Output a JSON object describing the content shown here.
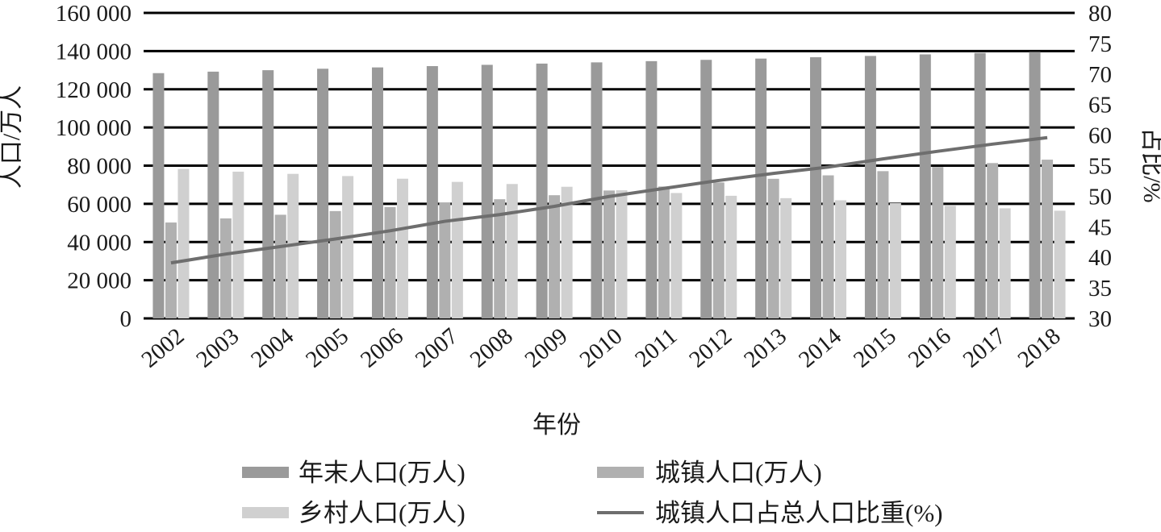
{
  "chart_data": {
    "type": "bar",
    "title": "",
    "xlabel": "年份",
    "ylabel": "人口/万人",
    "y2label": "占比/%",
    "ylim": [
      0,
      160000
    ],
    "y2lim": [
      30,
      80
    ],
    "y_ticks": [
      "0",
      "20 000",
      "40 000",
      "60 000",
      "80 000",
      "100 000",
      "120 000",
      "140 000",
      "160 000"
    ],
    "y2_ticks": [
      "30",
      "35",
      "40",
      "45",
      "50",
      "55",
      "60",
      "65",
      "70",
      "75",
      "80"
    ],
    "grid": "horizontal",
    "legend": "bottom",
    "categories": [
      "2002",
      "2003",
      "2004",
      "2005",
      "2006",
      "2007",
      "2008",
      "2009",
      "2010",
      "2011",
      "2012",
      "2013",
      "2014",
      "2015",
      "2016",
      "2017",
      "2018"
    ],
    "series": [
      {
        "name": "年末人口(万人)",
        "kind": "bar",
        "axis": "left",
        "color": "#9a9a9a",
        "values": [
          128453,
          129227,
          129988,
          130756,
          131448,
          132129,
          132802,
          133450,
          134091,
          134735,
          135404,
          136072,
          136782,
          137462,
          138271,
          139008,
          139538
        ]
      },
      {
        "name": "城镇人口(万人)",
        "kind": "bar",
        "axis": "left",
        "color": "#b0b0b0",
        "values": [
          50212,
          52376,
          54283,
          56212,
          58288,
          60633,
          62403,
          64512,
          66978,
          69079,
          71182,
          73111,
          74916,
          77116,
          79298,
          81347,
          83137
        ]
      },
      {
        "name": "乡村人口(万人)",
        "kind": "bar",
        "axis": "left",
        "color": "#d0d0d0",
        "values": [
          78241,
          76851,
          75705,
          74544,
          73160,
          71496,
          70399,
          68938,
          67113,
          65656,
          64222,
          62961,
          61866,
          60346,
          58973,
          57661,
          56401
        ]
      },
      {
        "name": "城镇人口占总人口比重(%)",
        "kind": "line",
        "axis": "right",
        "color": "#6e6e6e",
        "values": [
          39.09,
          40.53,
          41.76,
          42.99,
          44.34,
          45.89,
          46.99,
          48.34,
          49.95,
          51.27,
          52.57,
          53.73,
          54.77,
          56.1,
          57.35,
          58.52,
          59.58
        ]
      }
    ]
  }
}
